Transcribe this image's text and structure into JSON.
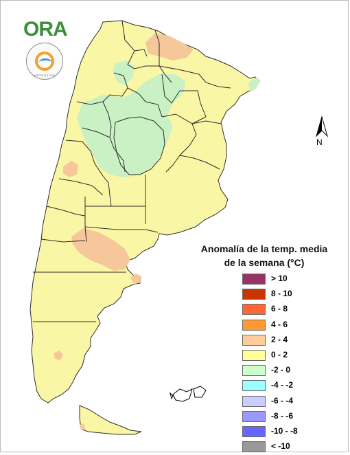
{
  "logos": {
    "ora_text": "ORA",
    "smn_mark": "ARGENTINA"
  },
  "north_arrow": {
    "label": "N"
  },
  "legend": {
    "title_line1": "Anomalía de la temp. media",
    "title_line2": "de la semana (°C)",
    "classes": [
      {
        "label": "> 10",
        "color": "#993366"
      },
      {
        "label": "8 - 10",
        "color": "#cc3300"
      },
      {
        "label": "6 - 8",
        "color": "#ff6633"
      },
      {
        "label": "4 - 6",
        "color": "#ff9933"
      },
      {
        "label": "2 - 4",
        "color": "#ffcc99"
      },
      {
        "label": "0 - 2",
        "color": "#ffff99"
      },
      {
        "label": "-2 - 0",
        "color": "#ccffcc"
      },
      {
        "label": "-4 - -2",
        "color": "#99ffff"
      },
      {
        "label": "-6 - -4",
        "color": "#ccccff"
      },
      {
        "label": "-8 - -6",
        "color": "#9999ff"
      },
      {
        "label": "-10 - -8",
        "color": "#6666ff"
      },
      {
        "label": "< -10",
        "color": "#999999"
      }
    ]
  },
  "map": {
    "colors": {
      "land": "#f9f7a5",
      "warm": "#f6c79a",
      "cool": "#c9f1c3",
      "border": "#2b2b2b"
    }
  }
}
